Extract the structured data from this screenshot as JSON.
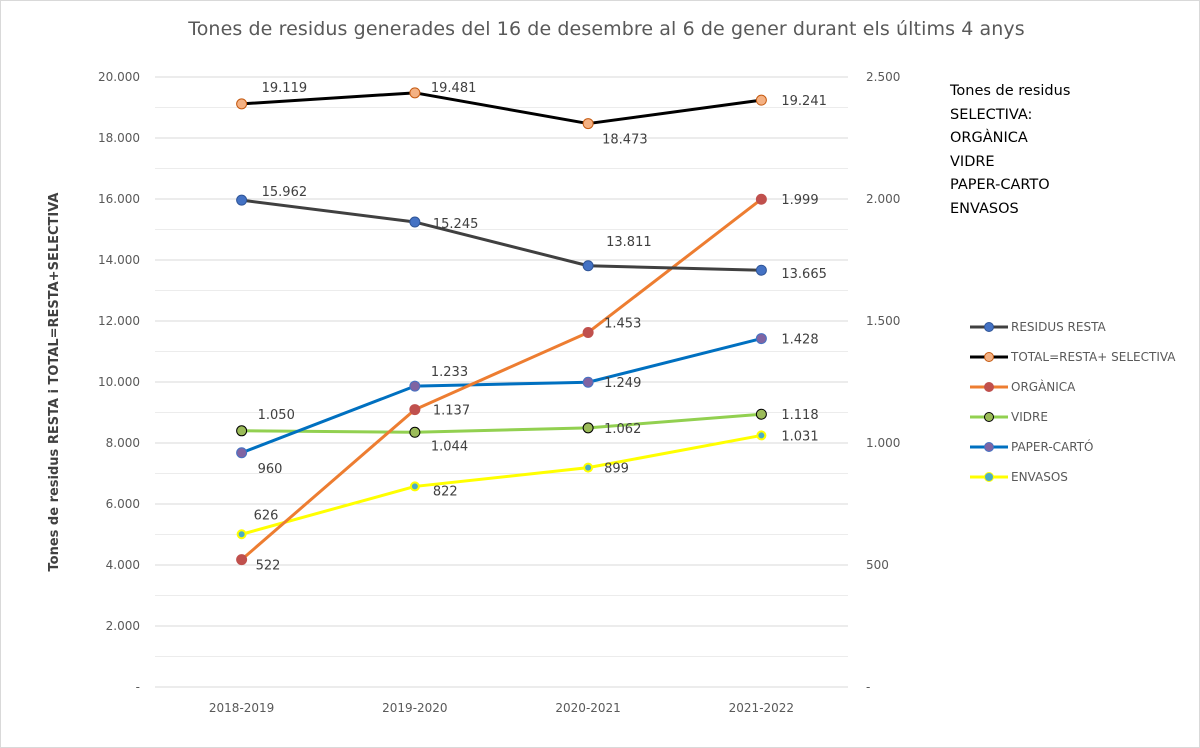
{
  "chart_data": {
    "type": "line",
    "title": "Tones de residus generades del 16 de desembre al 6 de gener durant els últims 4 anys",
    "xlabel": "",
    "ylabel": "Tones de residus RESTA i TOTAL=RESTA+SELECTIVA",
    "categories": [
      "2018-2019",
      "2019-2020",
      "2020-2021",
      "2021-2022"
    ],
    "y_left": {
      "ylim": [
        0,
        20000
      ],
      "ticks": [
        0,
        2000,
        4000,
        6000,
        8000,
        10000,
        12000,
        14000,
        16000,
        18000,
        20000
      ],
      "tick_labels": [
        "-",
        "2.000",
        "4.000",
        "6.000",
        "8.000",
        "10.000",
        "12.000",
        "14.000",
        "16.000",
        "18.000",
        "20.000"
      ]
    },
    "y_right": {
      "ylim": [
        0,
        2500
      ],
      "ticks": [
        0,
        500,
        1000,
        1500,
        2000,
        2500
      ],
      "tick_labels": [
        "-",
        "500",
        "1.000",
        "1.500",
        "2.000",
        "2.500"
      ]
    },
    "grid": true,
    "legend_position": "right",
    "series": [
      {
        "name": "RESIDUS RESTA",
        "axis": "left",
        "values": [
          15962,
          15245,
          13811,
          13665
        ],
        "labels": [
          "15.962",
          "15.245",
          "13.811",
          "13.665"
        ],
        "line_color": "#404040",
        "marker_color": "#4472c4",
        "marker_edge": "#2f5597"
      },
      {
        "name": "TOTAL=RESTA+ SELECTIVA",
        "axis": "left",
        "values": [
          19119,
          19481,
          18473,
          19241
        ],
        "labels": [
          "19.119",
          "19.481",
          "18.473",
          "19.241"
        ],
        "line_color": "#000000",
        "marker_color": "#f4b183",
        "marker_edge": "#c55a11"
      },
      {
        "name": "ORGÀNICA",
        "axis": "right",
        "values": [
          522,
          1137,
          1453,
          1999
        ],
        "labels": [
          "522",
          "1.137",
          "1.453",
          "1.999"
        ],
        "line_color": "#ed7d31",
        "marker_color": "#c0504d",
        "marker_edge": "#c0504d"
      },
      {
        "name": "VIDRE",
        "axis": "right",
        "values": [
          1050,
          1044,
          1062,
          1118
        ],
        "labels": [
          "1.050",
          "1.044",
          "1.062",
          "1.118"
        ],
        "line_color": "#92d050",
        "marker_color": "#9bbb59",
        "marker_edge": "#000000"
      },
      {
        "name": "PAPER-CARTÓ",
        "axis": "right",
        "values": [
          960,
          1233,
          1249,
          1428
        ],
        "labels": [
          "960",
          "1.233",
          "1.249",
          "1.428"
        ],
        "line_color": "#0070c0",
        "marker_color": "#8064a2",
        "marker_edge": "#4472c4"
      },
      {
        "name": "ENVASOS",
        "axis": "right",
        "values": [
          626,
          822,
          899,
          1031
        ],
        "labels": [
          "626",
          "822",
          "899",
          "1.031"
        ],
        "line_color": "#ffff00",
        "marker_color": "#4bacc6",
        "marker_edge": "#ffff00"
      }
    ],
    "annotation": [
      "Tones de residus",
      "SELECTIVA:",
      "ORGÀNICA",
      "VIDRE",
      "PAPER-CARTO",
      "ENVASOS"
    ]
  }
}
